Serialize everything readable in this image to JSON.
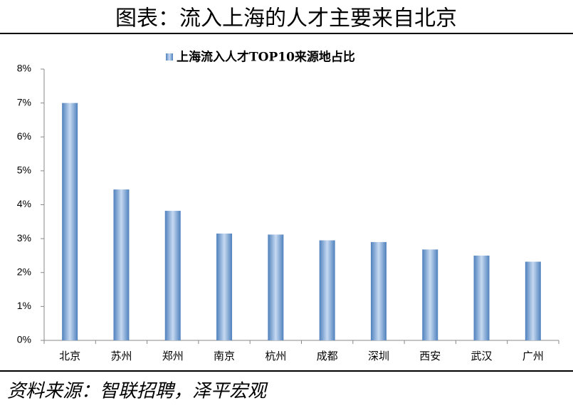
{
  "chart_data": {
    "type": "bar",
    "title": "图表：流入上海的人才主要来自北京",
    "source": "资料来源：智联招聘，泽平宏观",
    "categories": [
      "北京",
      "苏州",
      "郑州",
      "南京",
      "杭州",
      "成都",
      "深圳",
      "西安",
      "武汉",
      "广州"
    ],
    "series": [
      {
        "name": "上海流入人才TOP10来源地占比",
        "color": "#4f81bd",
        "values": [
          7.0,
          4.45,
          3.82,
          3.15,
          3.12,
          2.95,
          2.9,
          2.68,
          2.5,
          2.32
        ]
      }
    ],
    "ylim": [
      0,
      8
    ],
    "yticks": [
      {
        "value": 0,
        "label": "0%"
      },
      {
        "value": 1,
        "label": "1%"
      },
      {
        "value": 2,
        "label": "2%"
      },
      {
        "value": 3,
        "label": "3%"
      },
      {
        "value": 4,
        "label": "4%"
      },
      {
        "value": 5,
        "label": "5%"
      },
      {
        "value": 6,
        "label": "6%"
      },
      {
        "value": 7,
        "label": "7%"
      },
      {
        "value": 8,
        "label": "8%"
      }
    ],
    "legend": "top"
  }
}
